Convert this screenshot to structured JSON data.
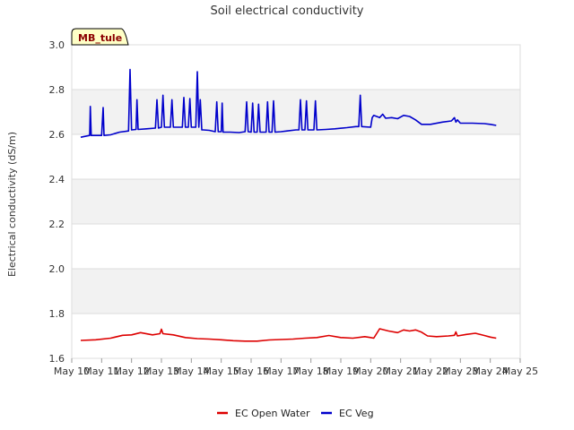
{
  "chart_data": {
    "type": "line",
    "title": "Soil electrical conductivity",
    "ylabel": "Electrical conductivity (dS/m)",
    "xlabel": "",
    "ylim": [
      1.6,
      3.0
    ],
    "xlim": [
      10,
      25
    ],
    "y_ticks": [
      "1.6",
      "1.8",
      "2.0",
      "2.2",
      "2.4",
      "2.6",
      "2.8",
      "3.0"
    ],
    "x_ticks": [
      {
        "value": 10,
        "label": "May 10"
      },
      {
        "value": 11,
        "label": "May 11"
      },
      {
        "value": 12,
        "label": "May 12"
      },
      {
        "value": 13,
        "label": "May 13"
      },
      {
        "value": 14,
        "label": "May 14"
      },
      {
        "value": 15,
        "label": "May 15"
      },
      {
        "value": 16,
        "label": "May 16"
      },
      {
        "value": 17,
        "label": "May 17"
      },
      {
        "value": 18,
        "label": "May 18"
      },
      {
        "value": 19,
        "label": "May 19"
      },
      {
        "value": 20,
        "label": "May 20"
      },
      {
        "value": 21,
        "label": "May 21"
      },
      {
        "value": 22,
        "label": "May 22"
      },
      {
        "value": 23,
        "label": "May 23"
      },
      {
        "value": 24,
        "label": "May 24"
      },
      {
        "value": 25,
        "label": "May 25"
      }
    ],
    "site_label": "MB_tule",
    "series": [
      {
        "name": "EC Open Water",
        "color": "#dd0000",
        "x": [
          10.3,
          10.8,
          11.3,
          11.7,
          12.0,
          12.3,
          12.7,
          12.95,
          13.0,
          13.05,
          13.4,
          13.8,
          14.2,
          14.6,
          15.0,
          15.4,
          15.8,
          16.2,
          16.6,
          17.0,
          17.4,
          17.8,
          18.2,
          18.6,
          19.0,
          19.4,
          19.8,
          20.0,
          20.1,
          20.3,
          20.6,
          20.9,
          21.1,
          21.3,
          21.5,
          21.7,
          21.9,
          22.2,
          22.6,
          22.8,
          22.85,
          22.9,
          23.2,
          23.5,
          23.8,
          24.0,
          24.2
        ],
        "y": [
          1.68,
          1.683,
          1.69,
          1.703,
          1.705,
          1.715,
          1.705,
          1.71,
          1.73,
          1.71,
          1.705,
          1.693,
          1.688,
          1.686,
          1.683,
          1.679,
          1.677,
          1.677,
          1.682,
          1.684,
          1.686,
          1.69,
          1.693,
          1.702,
          1.693,
          1.69,
          1.697,
          1.693,
          1.69,
          1.732,
          1.722,
          1.715,
          1.727,
          1.722,
          1.727,
          1.717,
          1.7,
          1.697,
          1.7,
          1.703,
          1.718,
          1.7,
          1.707,
          1.712,
          1.702,
          1.695,
          1.69
        ]
      },
      {
        "name": "EC Veg",
        "color": "#0000cc",
        "x": [
          10.3,
          10.5,
          10.6,
          10.62,
          10.65,
          11.0,
          11.05,
          11.08,
          11.3,
          11.6,
          11.9,
          11.95,
          12.0,
          12.15,
          12.18,
          12.22,
          12.5,
          12.8,
          12.85,
          12.9,
          13.0,
          13.05,
          13.1,
          13.3,
          13.35,
          13.4,
          13.7,
          13.75,
          13.8,
          13.9,
          13.95,
          14.0,
          14.15,
          14.2,
          14.25,
          14.3,
          14.35,
          14.4,
          14.6,
          14.8,
          14.85,
          14.9,
          15.0,
          15.03,
          15.06,
          15.3,
          15.6,
          15.8,
          15.85,
          15.9,
          16.0,
          16.05,
          16.1,
          16.2,
          16.25,
          16.3,
          16.5,
          16.55,
          16.6,
          16.7,
          16.75,
          16.8,
          17.0,
          17.2,
          17.5,
          17.6,
          17.65,
          17.7,
          17.8,
          17.85,
          17.9,
          18.1,
          18.15,
          18.2,
          18.5,
          18.8,
          19.2,
          19.5,
          19.6,
          19.65,
          19.7,
          20.0,
          20.05,
          20.1,
          20.3,
          20.4,
          20.5,
          20.7,
          20.9,
          21.1,
          21.3,
          21.5,
          21.7,
          22.0,
          22.4,
          22.7,
          22.8,
          22.85,
          22.9,
          23.0,
          23.4,
          23.8,
          24.0,
          24.2
        ],
        "y": [
          2.587,
          2.593,
          2.595,
          2.725,
          2.595,
          2.595,
          2.72,
          2.595,
          2.598,
          2.61,
          2.615,
          2.89,
          2.62,
          2.622,
          2.755,
          2.622,
          2.625,
          2.628,
          2.755,
          2.628,
          2.632,
          2.775,
          2.632,
          2.632,
          2.755,
          2.632,
          2.632,
          2.765,
          2.632,
          2.632,
          2.76,
          2.632,
          2.632,
          2.88,
          2.632,
          2.755,
          2.62,
          2.62,
          2.618,
          2.612,
          2.745,
          2.612,
          2.612,
          2.74,
          2.61,
          2.61,
          2.608,
          2.612,
          2.745,
          2.612,
          2.61,
          2.74,
          2.61,
          2.61,
          2.735,
          2.61,
          2.61,
          2.745,
          2.61,
          2.61,
          2.75,
          2.61,
          2.612,
          2.615,
          2.62,
          2.62,
          2.755,
          2.62,
          2.62,
          2.75,
          2.62,
          2.62,
          2.75,
          2.62,
          2.622,
          2.625,
          2.63,
          2.635,
          2.635,
          2.775,
          2.635,
          2.632,
          2.675,
          2.685,
          2.675,
          2.69,
          2.672,
          2.675,
          2.67,
          2.685,
          2.68,
          2.665,
          2.645,
          2.645,
          2.655,
          2.66,
          2.675,
          2.655,
          2.665,
          2.65,
          2.65,
          2.648,
          2.645,
          2.64
        ]
      }
    ]
  }
}
